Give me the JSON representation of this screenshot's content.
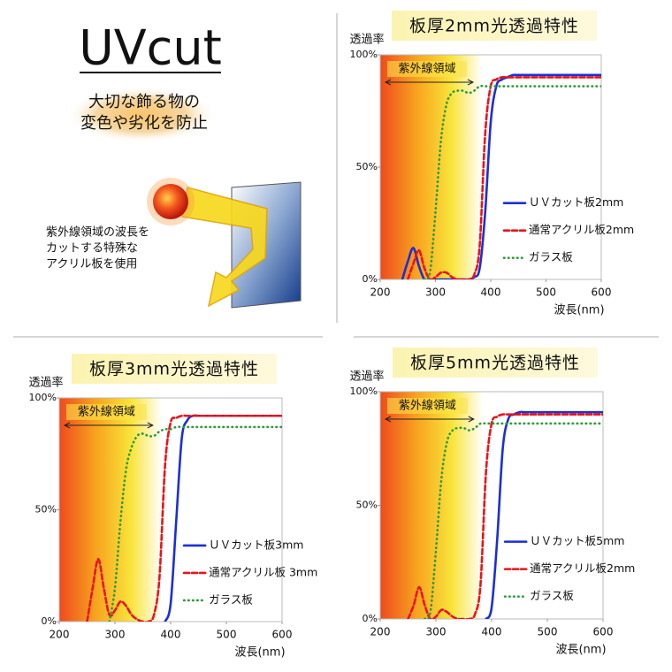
{
  "intro": {
    "logo": "UVcut",
    "tagline": [
      "大切な飾る物の",
      "変色や劣化を防止"
    ],
    "note": [
      "紫外線領域の波長を",
      "カットする特殊な",
      "アクリル板を使用"
    ]
  },
  "chart_data": [
    {
      "type": "line",
      "title": "板厚2mm光透過特性",
      "y_label": "透過率",
      "x_label": "波長(nm)",
      "annotation": "紫外線領域",
      "xlim": [
        200,
        600
      ],
      "xticks": [
        200,
        300,
        400,
        500,
        600
      ],
      "ylim": [
        0,
        100
      ],
      "yticks": [
        {
          "value": 0,
          "label": "0%"
        },
        {
          "value": 50,
          "label": "50%"
        },
        {
          "value": 100,
          "label": "100%"
        }
      ],
      "x": [
        200,
        210,
        220,
        230,
        240,
        250,
        260,
        270,
        280,
        290,
        300,
        310,
        320,
        330,
        340,
        350,
        360,
        370,
        380,
        390,
        400,
        410,
        420,
        430,
        440,
        450,
        460,
        470,
        480,
        490,
        500,
        510,
        520,
        530,
        540,
        550,
        560,
        570,
        580,
        590,
        600
      ],
      "series": [
        {
          "name": "ＵＶカット板2mm",
          "color": "#1a2fd6",
          "style": "solid",
          "values": [
            null,
            null,
            null,
            null,
            0,
            8,
            14,
            6,
            0,
            0,
            0,
            0,
            0,
            0,
            0,
            0,
            0,
            1,
            5,
            30,
            70,
            86,
            89,
            90,
            91,
            91,
            91,
            91,
            91,
            91,
            91,
            91,
            91,
            91,
            91,
            91,
            91,
            91,
            91,
            91,
            91
          ]
        },
        {
          "name": "通常アクリル板2mm",
          "color": "#e8141b",
          "style": "dashed",
          "values": [
            null,
            null,
            null,
            null,
            null,
            0,
            7,
            13,
            5,
            0,
            1,
            3,
            3,
            1,
            0,
            0,
            0,
            2,
            15,
            65,
            86,
            89,
            90,
            90,
            90,
            90,
            90,
            90,
            90,
            90,
            90,
            90,
            90,
            90,
            90,
            90,
            90,
            90,
            90,
            90,
            90
          ]
        },
        {
          "name": "ガラス板",
          "color": "#2f9a3a",
          "style": "dotted",
          "values": [
            null,
            null,
            null,
            null,
            null,
            null,
            null,
            null,
            0,
            3,
            30,
            62,
            78,
            83,
            84,
            84,
            83,
            84,
            86,
            86,
            86,
            86,
            86,
            86,
            86,
            86,
            86,
            86,
            86,
            86,
            86,
            86,
            86,
            86,
            86,
            86,
            86,
            86,
            86,
            86,
            86
          ]
        }
      ]
    },
    {
      "type": "line",
      "title": "板厚3mm光透過特性",
      "y_label": "透過率",
      "x_label": "波長(nm)",
      "annotation": "紫外線領域",
      "xlim": [
        200,
        600
      ],
      "xticks": [
        200,
        300,
        400,
        500,
        600
      ],
      "ylim": [
        0,
        100
      ],
      "yticks": [
        {
          "value": 0,
          "label": "0%"
        },
        {
          "value": 50,
          "label": "50%"
        },
        {
          "value": 100,
          "label": "100%"
        }
      ],
      "x": [
        200,
        210,
        220,
        230,
        240,
        250,
        260,
        270,
        280,
        290,
        300,
        310,
        320,
        330,
        340,
        350,
        360,
        370,
        380,
        390,
        400,
        410,
        420,
        430,
        440,
        450,
        460,
        470,
        480,
        490,
        500,
        510,
        520,
        530,
        540,
        550,
        560,
        570,
        580,
        590,
        600
      ],
      "series": [
        {
          "name": "ＵＶカット板3mm",
          "color": "#1a2fd6",
          "style": "solid",
          "values": [
            null,
            null,
            null,
            null,
            null,
            null,
            null,
            null,
            null,
            null,
            null,
            null,
            null,
            null,
            null,
            null,
            null,
            null,
            null,
            0,
            8,
            45,
            82,
            90,
            92,
            92,
            92,
            92,
            92,
            92,
            92,
            92,
            92,
            92,
            92,
            92,
            92,
            92,
            92,
            92,
            92
          ]
        },
        {
          "name": "通常アクリル板 3mm",
          "color": "#e8141b",
          "style": "dashed",
          "values": [
            null,
            null,
            null,
            null,
            null,
            0,
            15,
            28,
            15,
            3,
            5,
            9,
            7,
            3,
            1,
            0,
            0,
            3,
            20,
            70,
            89,
            91,
            92,
            92,
            92,
            92,
            92,
            92,
            92,
            92,
            92,
            92,
            92,
            92,
            92,
            92,
            92,
            92,
            92,
            92,
            92
          ]
        },
        {
          "name": "ガラス板",
          "color": "#2f9a3a",
          "style": "dotted",
          "values": [
            null,
            null,
            null,
            null,
            null,
            null,
            null,
            null,
            null,
            0,
            15,
            45,
            68,
            78,
            83,
            84,
            83,
            83,
            85,
            86,
            86,
            87,
            87,
            87,
            87,
            87,
            87,
            87,
            87,
            87,
            87,
            87,
            87,
            87,
            87,
            87,
            87,
            87,
            87,
            87,
            87
          ]
        }
      ]
    },
    {
      "type": "line",
      "title": "板厚5mm光透過特性",
      "y_label": "透過率",
      "x_label": "波長(nm)",
      "annotation": "紫外線領域",
      "xlim": [
        200,
        600
      ],
      "xticks": [
        200,
        300,
        400,
        500,
        600
      ],
      "ylim": [
        0,
        100
      ],
      "yticks": [
        {
          "value": 0,
          "label": "0%"
        },
        {
          "value": 50,
          "label": "50%"
        },
        {
          "value": 100,
          "label": "100%"
        }
      ],
      "x": [
        200,
        210,
        220,
        230,
        240,
        250,
        260,
        270,
        280,
        290,
        300,
        310,
        320,
        330,
        340,
        350,
        360,
        370,
        380,
        390,
        400,
        410,
        420,
        430,
        440,
        450,
        460,
        470,
        480,
        490,
        500,
        510,
        520,
        530,
        540,
        550,
        560,
        570,
        580,
        590,
        600
      ],
      "series": [
        {
          "name": "ＵＶカット板5mm",
          "color": "#1a2fd6",
          "style": "solid",
          "values": [
            null,
            null,
            null,
            null,
            null,
            null,
            null,
            null,
            null,
            null,
            null,
            null,
            null,
            null,
            null,
            null,
            null,
            null,
            null,
            0,
            5,
            35,
            75,
            88,
            90,
            91,
            91,
            91,
            91,
            91,
            91,
            91,
            91,
            91,
            91,
            91,
            91,
            91,
            91,
            91,
            91
          ]
        },
        {
          "name": "通常アクリル板2mm",
          "color": "#e8141b",
          "style": "dashed",
          "values": [
            null,
            null,
            null,
            null,
            null,
            0,
            6,
            14,
            6,
            0,
            1,
            4,
            3,
            1,
            0,
            0,
            0,
            2,
            15,
            65,
            86,
            89,
            90,
            90,
            90,
            90,
            90,
            90,
            90,
            90,
            90,
            90,
            90,
            90,
            90,
            90,
            90,
            90,
            90,
            90,
            90
          ]
        },
        {
          "name": "ガラス板",
          "color": "#2f9a3a",
          "style": "dotted",
          "values": [
            null,
            null,
            null,
            null,
            null,
            null,
            null,
            null,
            0,
            3,
            30,
            62,
            78,
            83,
            84,
            84,
            83,
            84,
            86,
            86,
            86,
            86,
            86,
            86,
            86,
            86,
            86,
            86,
            86,
            86,
            86,
            86,
            86,
            86,
            86,
            86,
            86,
            86,
            86,
            86,
            86
          ]
        }
      ]
    }
  ]
}
